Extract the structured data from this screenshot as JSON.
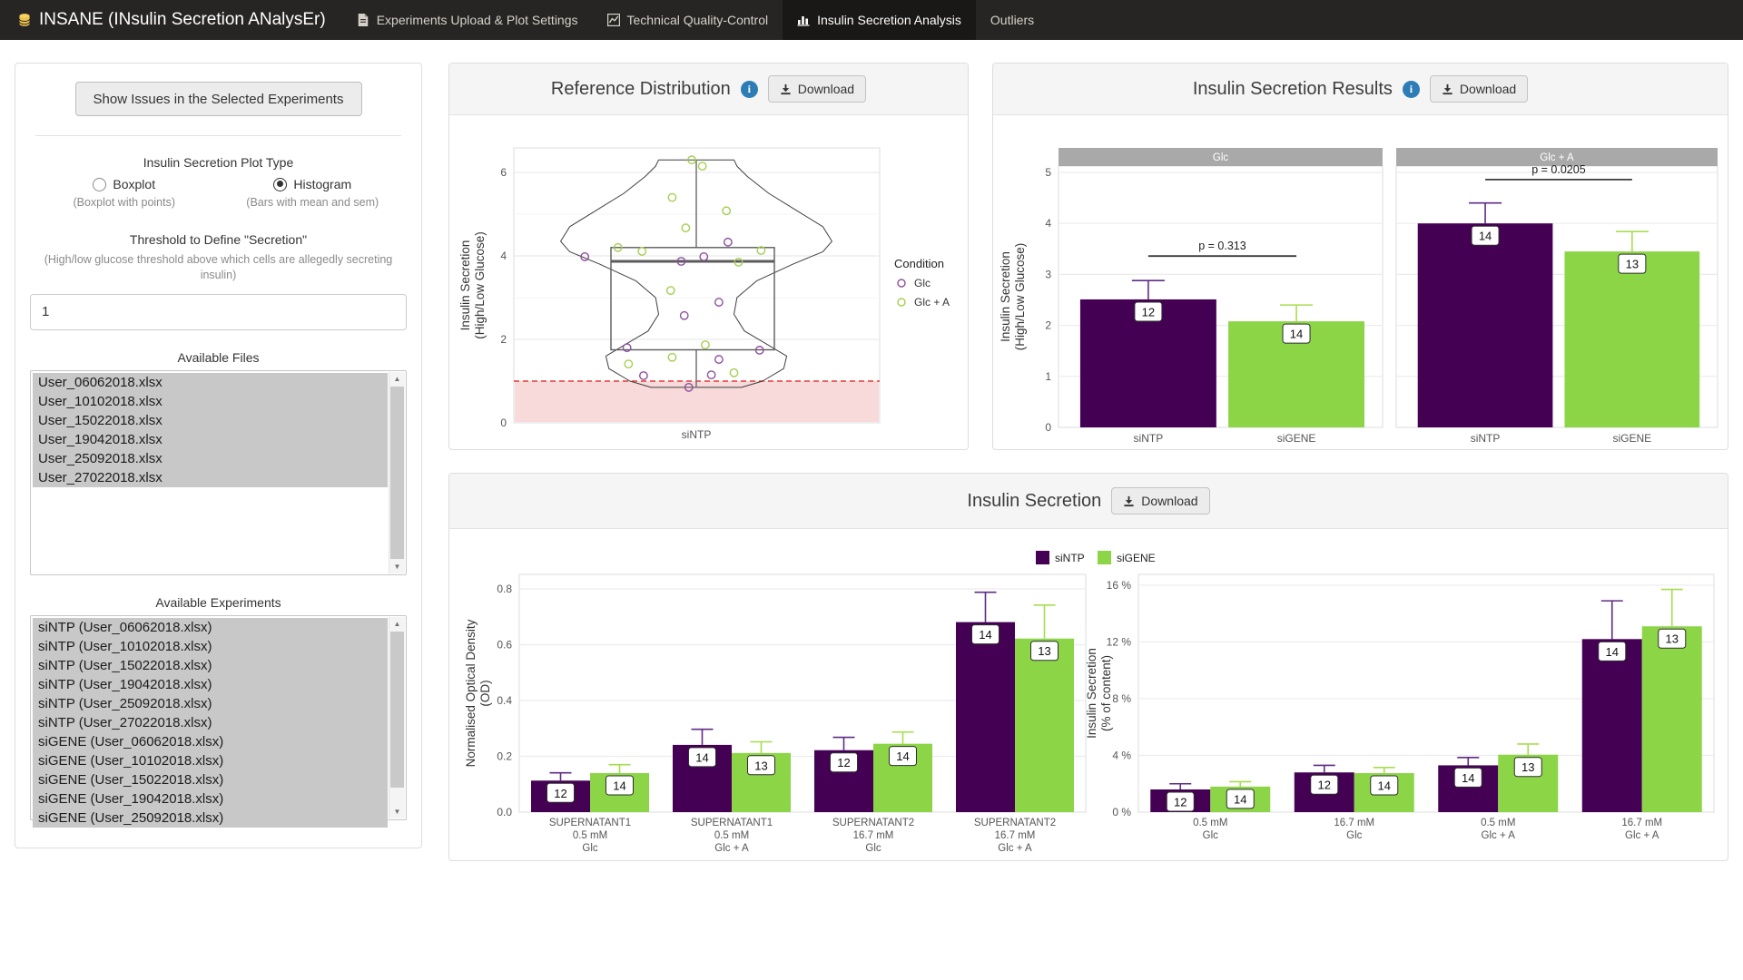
{
  "navbar": {
    "brand": "INSANE (INsulin Secretion ANalysEr)",
    "tabs": [
      {
        "label": "Experiments Upload & Plot Settings",
        "icon": "file-icon",
        "active": false
      },
      {
        "label": "Technical Quality-Control",
        "icon": "line-chart-icon",
        "active": false
      },
      {
        "label": "Insulin Secretion Analysis",
        "icon": "bar-chart-icon",
        "active": true
      },
      {
        "label": "Outliers",
        "icon": null,
        "active": false
      }
    ]
  },
  "sidebar": {
    "show_issues_button": "Show Issues in the Selected Experiments",
    "plot_type": {
      "label": "Insulin Secretion Plot Type",
      "options": [
        {
          "label": "Boxplot",
          "hint": "(Boxplot with points)",
          "selected": false
        },
        {
          "label": "Histogram",
          "hint": "(Bars with mean and sem)",
          "selected": true
        }
      ]
    },
    "threshold": {
      "label": "Threshold to Define \"Secretion\"",
      "help": "(High/low glucose threshold above which cells are allegedly secreting insulin)",
      "value": "1"
    },
    "available_files": {
      "label": "Available Files",
      "items": [
        "User_06062018.xlsx",
        "User_10102018.xlsx",
        "User_15022018.xlsx",
        "User_19042018.xlsx",
        "User_25092018.xlsx",
        "User_27022018.xlsx"
      ]
    },
    "available_experiments": {
      "label": "Available Experiments",
      "items": [
        "siNTP (User_06062018.xlsx)",
        "siNTP (User_10102018.xlsx)",
        "siNTP (User_15022018.xlsx)",
        "siNTP (User_19042018.xlsx)",
        "siNTP (User_25092018.xlsx)",
        "siNTP (User_27022018.xlsx)",
        "siGENE (User_06062018.xlsx)",
        "siGENE (User_10102018.xlsx)",
        "siGENE (User_15022018.xlsx)",
        "siGENE (User_19042018.xlsx)",
        "siGENE (User_25092018.xlsx)"
      ]
    }
  },
  "panels": {
    "reference": {
      "title": "Reference Distribution",
      "download_label": "Download"
    },
    "results": {
      "title": "Insulin Secretion Results",
      "download_label": "Download"
    },
    "secretion": {
      "title": "Insulin Secretion",
      "download_label": "Download"
    }
  },
  "colors": {
    "accent_info": "#2d7cb5",
    "series": {
      "siNTP": "#440154",
      "siGENE": "#8bd546"
    },
    "series_err": {
      "siNTP": "#5e2b85",
      "siGENE": "#a6dd4f"
    },
    "points": {
      "Glc": "#8d4f9f",
      "Glc + A": "#a4ce4e"
    },
    "threshold_line": "#e53935",
    "threshold_fill": "rgba(229,87,87,0.22)",
    "strip_bg": "#a9a9a9"
  },
  "chart_data": [
    {
      "id": "reference_distribution",
      "type": "violin_box_points",
      "title": "Reference Distribution",
      "x_category": "siNTP",
      "ylabel": [
        "Insulin Secretion",
        "(High/Low Glucose)"
      ],
      "ylim": [
        0,
        6.6
      ],
      "yticks": [
        0,
        2,
        4,
        6
      ],
      "yticks_minor": [
        1,
        3,
        5
      ],
      "threshold": 1,
      "box": {
        "q1": 1.75,
        "median": 3.87,
        "q3": 4.2,
        "whisker_low": 0.85,
        "whisker_high": 6.3
      },
      "violin_profile": [
        [
          0.85,
          0.3
        ],
        [
          1.0,
          0.44
        ],
        [
          1.3,
          0.58
        ],
        [
          1.6,
          0.6
        ],
        [
          1.9,
          0.46
        ],
        [
          2.2,
          0.32
        ],
        [
          2.6,
          0.25
        ],
        [
          3.0,
          0.27
        ],
        [
          3.4,
          0.4
        ],
        [
          3.8,
          0.64
        ],
        [
          4.1,
          0.84
        ],
        [
          4.35,
          0.9
        ],
        [
          4.7,
          0.84
        ],
        [
          5.1,
          0.66
        ],
        [
          5.5,
          0.48
        ],
        [
          5.9,
          0.34
        ],
        [
          6.15,
          0.27
        ],
        [
          6.3,
          0.25
        ]
      ],
      "points_format": "[x_offset_fraction, value, condition]",
      "points": [
        [
          -0.03,
          6.3,
          "Glc + A"
        ],
        [
          0.04,
          6.15,
          "Glc + A"
        ],
        [
          -0.16,
          5.4,
          "Glc + A"
        ],
        [
          0.2,
          5.08,
          "Glc + A"
        ],
        [
          -0.07,
          4.67,
          "Glc + A"
        ],
        [
          0.21,
          4.33,
          "Glc"
        ],
        [
          -0.52,
          4.2,
          "Glc + A"
        ],
        [
          -0.36,
          4.11,
          "Glc + A"
        ],
        [
          0.43,
          4.13,
          "Glc + A"
        ],
        [
          -0.74,
          3.98,
          "Glc"
        ],
        [
          0.05,
          3.98,
          "Glc"
        ],
        [
          -0.1,
          3.87,
          "Glc"
        ],
        [
          0.28,
          3.85,
          "Glc + A"
        ],
        [
          -0.17,
          3.17,
          "Glc + A"
        ],
        [
          0.15,
          2.89,
          "Glc"
        ],
        [
          -0.08,
          2.57,
          "Glc"
        ],
        [
          -0.46,
          1.8,
          "Glc"
        ],
        [
          0.06,
          1.87,
          "Glc + A"
        ],
        [
          0.42,
          1.74,
          "Glc"
        ],
        [
          -0.45,
          1.41,
          "Glc + A"
        ],
        [
          -0.16,
          1.57,
          "Glc + A"
        ],
        [
          0.15,
          1.52,
          "Glc"
        ],
        [
          0.25,
          1.2,
          "Glc + A"
        ],
        [
          -0.35,
          1.13,
          "Glc"
        ],
        [
          0.1,
          1.15,
          "Glc"
        ],
        [
          -0.05,
          0.85,
          "Glc"
        ]
      ],
      "legend": {
        "title": "Condition",
        "items": [
          {
            "label": "Glc"
          },
          {
            "label": "Glc + A"
          }
        ]
      }
    },
    {
      "id": "insulin_secretion_results",
      "type": "bar",
      "ylabel": [
        "Insulin Secretion",
        "(High/Low Glucose)"
      ],
      "ylim": [
        0,
        5.1
      ],
      "yticks": [
        0,
        1,
        2,
        3,
        4,
        5
      ],
      "facets": [
        {
          "strip": "Glc",
          "p_value": "p = 0.313",
          "p_line_value": 3.36,
          "bars": [
            {
              "group": "siNTP",
              "value": 2.51,
              "err_high": 2.88,
              "n": 12
            },
            {
              "group": "siGENE",
              "value": 2.08,
              "err_high": 2.4,
              "n": 14
            }
          ]
        },
        {
          "strip": "Glc + A",
          "p_value": "p = 0.0205",
          "p_line_value": 4.86,
          "bars": [
            {
              "group": "siNTP",
              "value": 4.0,
              "err_high": 4.4,
              "n": 14
            },
            {
              "group": "siGENE",
              "value": 3.45,
              "err_high": 3.84,
              "n": 13
            }
          ]
        }
      ]
    },
    {
      "id": "normalised_optical_density",
      "type": "bar",
      "ylabel": [
        "Normalised Optical Density",
        "(OD)"
      ],
      "ylim": [
        0,
        0.84
      ],
      "yticks": [
        {
          "v": 0,
          "label": "0.0"
        },
        {
          "v": 0.2,
          "label": "0.2"
        },
        {
          "v": 0.4,
          "label": "0.4"
        },
        {
          "v": 0.6,
          "label": "0.6"
        },
        {
          "v": 0.8,
          "label": "0.8"
        }
      ],
      "categories": [
        [
          "SUPERNATANT1",
          "0.5 mM",
          "Glc"
        ],
        [
          "SUPERNATANT1",
          "0.5 mM",
          "Glc + A"
        ],
        [
          "SUPERNATANT2",
          "16.7 mM",
          "Glc"
        ],
        [
          "SUPERNATANT2",
          "16.7 mM",
          "Glc + A"
        ]
      ],
      "series": [
        {
          "name": "siNTP",
          "values": [
            0.113,
            0.241,
            0.222,
            0.681
          ],
          "err_high": [
            0.141,
            0.297,
            0.268,
            0.788
          ],
          "n": [
            12,
            14,
            12,
            14
          ]
        },
        {
          "name": "siGENE",
          "values": [
            0.14,
            0.212,
            0.245,
            0.622
          ],
          "err_high": [
            0.17,
            0.252,
            0.287,
            0.742
          ],
          "n": [
            14,
            13,
            14,
            13
          ]
        }
      ],
      "legend": [
        "siNTP",
        "siGENE"
      ],
      "legend_position": "top-center"
    },
    {
      "id": "insulin_secretion_percent",
      "type": "bar",
      "ylabel": [
        "Insulin Secretion",
        "(% of content)"
      ],
      "ylim": [
        0,
        16.6
      ],
      "yticks": [
        {
          "v": 0,
          "label": "0 %"
        },
        {
          "v": 4,
          "label": "4 %"
        },
        {
          "v": 8,
          "label": "8 %"
        },
        {
          "v": 12,
          "label": "12 %"
        },
        {
          "v": 16,
          "label": "16 %"
        }
      ],
      "categories": [
        [
          "0.5 mM",
          "Glc"
        ],
        [
          "16.7 mM",
          "Glc"
        ],
        [
          "0.5 mM",
          "Glc + A"
        ],
        [
          "16.7 mM",
          "Glc + A"
        ]
      ],
      "series": [
        {
          "name": "siNTP",
          "values": [
            1.6,
            2.8,
            3.3,
            12.2
          ],
          "err_high": [
            2.0,
            3.3,
            3.85,
            14.9
          ],
          "n": [
            12,
            12,
            14,
            14
          ]
        },
        {
          "name": "siGENE",
          "values": [
            1.8,
            2.75,
            4.05,
            13.1
          ],
          "err_high": [
            2.15,
            3.15,
            4.8,
            15.7
          ],
          "n": [
            14,
            14,
            13,
            13
          ]
        }
      ]
    }
  ]
}
